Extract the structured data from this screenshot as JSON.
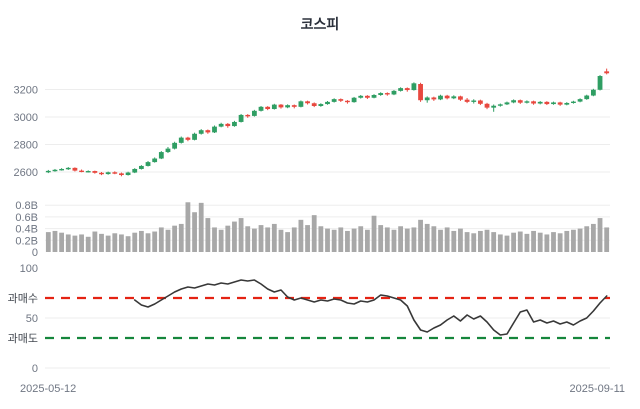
{
  "title": "코스피",
  "x_axis": {
    "start_label": "2025-05-12",
    "end_label": "2025-09-11"
  },
  "colors": {
    "up": "#2f9e63",
    "down": "#e8483f",
    "volume_bar": "#a8a8a8",
    "grid": "#ededed",
    "axis_text": "#6f7683",
    "band_label_text": "#434850",
    "rsi_line": "#383838",
    "overbought_line": "#e42313",
    "oversold_line": "#15863c",
    "title_text": "#2b303b"
  },
  "chart_data": [
    {
      "type": "candlestick",
      "title": "코스피",
      "x_range": [
        "2025-05-12",
        "2025-09-11"
      ],
      "ylim": [
        2540,
        3400
      ],
      "y_ticks": [
        {
          "value": 2600,
          "label": "2600"
        },
        {
          "value": 2800,
          "label": "2800"
        },
        {
          "value": 3000,
          "label": "3000"
        },
        {
          "value": 3200,
          "label": "3200"
        }
      ],
      "grid": true,
      "candles_ohlc": [
        [
          2600,
          2615,
          2592,
          2608
        ],
        [
          2608,
          2622,
          2602,
          2616
        ],
        [
          2616,
          2628,
          2610,
          2622
        ],
        [
          2622,
          2636,
          2615,
          2630
        ],
        [
          2630,
          2634,
          2604,
          2610
        ],
        [
          2610,
          2618,
          2598,
          2602
        ],
        [
          2602,
          2612,
          2596,
          2607
        ],
        [
          2607,
          2610,
          2588,
          2594
        ],
        [
          2594,
          2600,
          2577,
          2585
        ],
        [
          2585,
          2603,
          2580,
          2598
        ],
        [
          2598,
          2605,
          2584,
          2590
        ],
        [
          2590,
          2596,
          2569,
          2578
        ],
        [
          2578,
          2602,
          2574,
          2596
        ],
        [
          2596,
          2628,
          2592,
          2622
        ],
        [
          2622,
          2650,
          2618,
          2644
        ],
        [
          2644,
          2680,
          2640,
          2672
        ],
        [
          2672,
          2706,
          2668,
          2698
        ],
        [
          2698,
          2752,
          2694,
          2745
        ],
        [
          2745,
          2782,
          2738,
          2770
        ],
        [
          2770,
          2820,
          2764,
          2812
        ],
        [
          2812,
          2858,
          2807,
          2850
        ],
        [
          2850,
          2856,
          2824,
          2834
        ],
        [
          2834,
          2886,
          2830,
          2878
        ],
        [
          2878,
          2912,
          2872,
          2904
        ],
        [
          2904,
          2909,
          2878,
          2888
        ],
        [
          2888,
          2938,
          2884,
          2930
        ],
        [
          2930,
          2958,
          2925,
          2950
        ],
        [
          2950,
          2956,
          2922,
          2934
        ],
        [
          2934,
          2972,
          2929,
          2964
        ],
        [
          2964,
          3022,
          2960,
          3015
        ],
        [
          3015,
          3021,
          2994,
          3008
        ],
        [
          3008,
          3052,
          3003,
          3045
        ],
        [
          3045,
          3080,
          3040,
          3074
        ],
        [
          3074,
          3079,
          3050,
          3058
        ],
        [
          3058,
          3096,
          3054,
          3090
        ],
        [
          3090,
          3094,
          3061,
          3070
        ],
        [
          3070,
          3092,
          3064,
          3086
        ],
        [
          3086,
          3091,
          3063,
          3074
        ],
        [
          3074,
          3120,
          3070,
          3114
        ],
        [
          3114,
          3119,
          3091,
          3100
        ],
        [
          3100,
          3106,
          3072,
          3080
        ],
        [
          3080,
          3100,
          3074,
          3094
        ],
        [
          3094,
          3116,
          3089,
          3110
        ],
        [
          3110,
          3136,
          3105,
          3130
        ],
        [
          3130,
          3135,
          3109,
          3118
        ],
        [
          3118,
          3123,
          3097,
          3108
        ],
        [
          3108,
          3146,
          3104,
          3140
        ],
        [
          3140,
          3160,
          3134,
          3154
        ],
        [
          3154,
          3159,
          3131,
          3140
        ],
        [
          3140,
          3166,
          3136,
          3160
        ],
        [
          3160,
          3180,
          3154,
          3174
        ],
        [
          3174,
          3179,
          3155,
          3164
        ],
        [
          3164,
          3196,
          3159,
          3190
        ],
        [
          3190,
          3216,
          3185,
          3210
        ],
        [
          3210,
          3215,
          3184,
          3196
        ],
        [
          3196,
          3252,
          3192,
          3245
        ],
        [
          3240,
          3249,
          3110,
          3122
        ],
        [
          3122,
          3150,
          3104,
          3142
        ],
        [
          3142,
          3148,
          3117,
          3128
        ],
        [
          3128,
          3162,
          3123,
          3155
        ],
        [
          3155,
          3161,
          3128,
          3136
        ],
        [
          3136,
          3158,
          3130,
          3150
        ],
        [
          3150,
          3155,
          3117,
          3126
        ],
        [
          3126,
          3138,
          3101,
          3110
        ],
        [
          3110,
          3129,
          3098,
          3120
        ],
        [
          3120,
          3126,
          3087,
          3096
        ],
        [
          3096,
          3103,
          3057,
          3068
        ],
        [
          3068,
          3091,
          3038,
          3082
        ],
        [
          3082,
          3098,
          3075,
          3092
        ],
        [
          3092,
          3112,
          3087,
          3106
        ],
        [
          3106,
          3128,
          3100,
          3122
        ],
        [
          3122,
          3127,
          3095,
          3104
        ],
        [
          3104,
          3121,
          3098,
          3114
        ],
        [
          3114,
          3119,
          3089,
          3098
        ],
        [
          3098,
          3116,
          3092,
          3110
        ],
        [
          3110,
          3115,
          3087,
          3094
        ],
        [
          3094,
          3112,
          3089,
          3106
        ],
        [
          3106,
          3111,
          3081,
          3090
        ],
        [
          3090,
          3108,
          3085,
          3102
        ],
        [
          3102,
          3118,
          3097,
          3112
        ],
        [
          3112,
          3136,
          3107,
          3130
        ],
        [
          3130,
          3162,
          3125,
          3156
        ],
        [
          3156,
          3205,
          3151,
          3198
        ],
        [
          3198,
          3305,
          3193,
          3298
        ],
        [
          3332,
          3352,
          3310,
          3318
        ]
      ]
    },
    {
      "type": "bar",
      "name": "volume",
      "unit": "B",
      "ylim": [
        0,
        0.9
      ],
      "y_ticks": [
        {
          "value": 0,
          "label": "0"
        },
        {
          "value": 0.2,
          "label": "0.2B"
        },
        {
          "value": 0.4,
          "label": "0.4B"
        },
        {
          "value": 0.6,
          "label": "0.6B"
        },
        {
          "value": 0.8,
          "label": "0.8B"
        }
      ],
      "values": [
        0.34,
        0.36,
        0.33,
        0.3,
        0.28,
        0.3,
        0.26,
        0.35,
        0.31,
        0.28,
        0.32,
        0.3,
        0.27,
        0.33,
        0.36,
        0.32,
        0.35,
        0.42,
        0.38,
        0.45,
        0.48,
        0.85,
        0.68,
        0.84,
        0.58,
        0.42,
        0.38,
        0.45,
        0.52,
        0.58,
        0.44,
        0.4,
        0.46,
        0.42,
        0.48,
        0.38,
        0.34,
        0.42,
        0.55,
        0.46,
        0.63,
        0.44,
        0.4,
        0.38,
        0.42,
        0.36,
        0.4,
        0.44,
        0.38,
        0.62,
        0.46,
        0.42,
        0.38,
        0.44,
        0.4,
        0.42,
        0.55,
        0.48,
        0.44,
        0.38,
        0.42,
        0.36,
        0.4,
        0.34,
        0.32,
        0.36,
        0.38,
        0.34,
        0.3,
        0.28,
        0.33,
        0.35,
        0.31,
        0.36,
        0.33,
        0.3,
        0.34,
        0.32,
        0.36,
        0.38,
        0.4,
        0.44,
        0.48,
        0.58,
        0.42
      ]
    },
    {
      "type": "line",
      "name": "rsi",
      "ylim": [
        0,
        100
      ],
      "y_ticks": [
        {
          "value": 0,
          "label": "0"
        },
        {
          "value": 50,
          "label": "50"
        },
        {
          "value": 100,
          "label": "100"
        }
      ],
      "overbought": {
        "label": "과매수",
        "value": 70
      },
      "oversold": {
        "label": "과매도",
        "value": 30
      },
      "start_index": 13,
      "values": [
        68,
        63,
        61,
        64,
        68,
        72,
        76,
        79,
        81,
        80,
        82,
        84,
        83,
        85,
        84,
        86,
        88,
        87,
        88,
        84,
        79,
        76,
        78,
        71,
        68,
        70,
        68,
        66,
        68,
        67,
        69,
        68,
        65,
        64,
        67,
        66,
        68,
        73,
        72,
        70,
        68,
        62,
        48,
        38,
        36,
        40,
        43,
        48,
        52,
        47,
        53,
        49,
        52,
        46,
        38,
        33,
        34,
        45,
        56,
        58,
        46,
        48,
        45,
        47,
        44,
        46,
        43,
        47,
        50,
        57,
        65,
        72
      ]
    }
  ]
}
